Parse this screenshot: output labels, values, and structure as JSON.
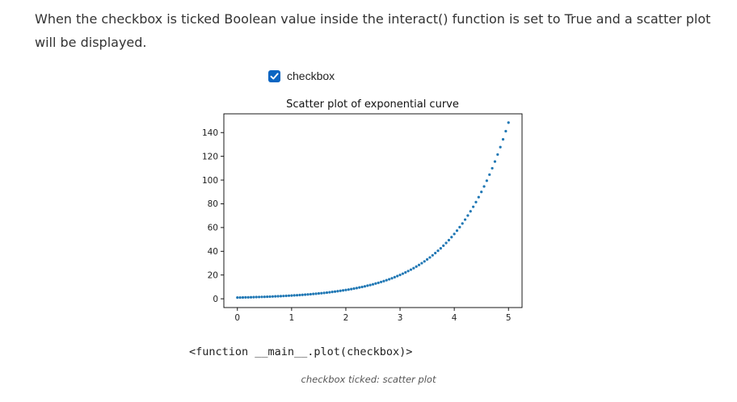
{
  "intro_text": "When the checkbox is ticked Boolean value inside the interact() function is set to True and a scatter plot will be displayed.",
  "checkbox": {
    "label": "checkbox",
    "checked": true,
    "color": "#0a65c2"
  },
  "output_text": "<function __main__.plot(checkbox)>",
  "caption": "checkbox ticked: scatter plot",
  "chart_data": {
    "type": "scatter",
    "title": "Scatter plot of exponential curve",
    "xlabel": "",
    "ylabel": "",
    "xlim": [
      -0.25,
      5.25
    ],
    "ylim": [
      -7.4,
      155.8
    ],
    "x_ticks": [
      0,
      1,
      2,
      3,
      4,
      5
    ],
    "y_ticks": [
      0,
      20,
      40,
      60,
      80,
      100,
      120,
      140
    ],
    "point_color": "#1f77b4",
    "series": [
      {
        "x": [
          0,
          0.05,
          0.1,
          0.15,
          0.2,
          0.25,
          0.3,
          0.35,
          0.4,
          0.45,
          0.5,
          0.55,
          0.6,
          0.65,
          0.7,
          0.75,
          0.8,
          0.85,
          0.9,
          0.95,
          1,
          1.05,
          1.1,
          1.15,
          1.2,
          1.25,
          1.3,
          1.35,
          1.4,
          1.45,
          1.5,
          1.55,
          1.6,
          1.65,
          1.7,
          1.75,
          1.8,
          1.85,
          1.9,
          1.95,
          2,
          2.05,
          2.1,
          2.15,
          2.2,
          2.25,
          2.3,
          2.35,
          2.4,
          2.45,
          2.5,
          2.55,
          2.6,
          2.65,
          2.7,
          2.75,
          2.8,
          2.85,
          2.9,
          2.95,
          3,
          3.05,
          3.1,
          3.15,
          3.2,
          3.25,
          3.3,
          3.35,
          3.4,
          3.45,
          3.5,
          3.55,
          3.6,
          3.65,
          3.7,
          3.75,
          3.8,
          3.85,
          3.9,
          3.95,
          4,
          4.05,
          4.1,
          4.15,
          4.2,
          4.25,
          4.3,
          4.35,
          4.4,
          4.45,
          4.5,
          4.55,
          4.6,
          4.65,
          4.7,
          4.75,
          4.8,
          4.85,
          4.9,
          4.95,
          5
        ],
        "y": [
          1,
          1.05,
          1.11,
          1.16,
          1.22,
          1.28,
          1.35,
          1.42,
          1.49,
          1.57,
          1.65,
          1.73,
          1.82,
          1.92,
          2.01,
          2.12,
          2.23,
          2.34,
          2.46,
          2.59,
          2.72,
          2.86,
          3,
          3.16,
          3.32,
          3.49,
          3.67,
          3.86,
          4.06,
          4.26,
          4.48,
          4.71,
          4.95,
          5.21,
          5.47,
          5.75,
          6.05,
          6.36,
          6.69,
          7.03,
          7.39,
          7.77,
          8.17,
          8.58,
          9.03,
          9.49,
          9.97,
          10.49,
          11.02,
          11.59,
          12.18,
          12.81,
          13.46,
          14.15,
          14.88,
          15.64,
          16.44,
          17.29,
          18.17,
          19.11,
          20.09,
          21.12,
          22.2,
          23.34,
          24.53,
          25.79,
          27.11,
          28.5,
          29.96,
          31.5,
          33.12,
          34.81,
          36.6,
          38.48,
          40.45,
          42.52,
          44.7,
          46.99,
          49.4,
          51.94,
          54.6,
          57.4,
          60.34,
          63.43,
          66.69,
          70.11,
          73.7,
          77.48,
          81.45,
          85.63,
          90.02,
          94.63,
          99.48,
          104.58,
          109.95,
          115.58,
          121.51,
          127.74,
          134.29,
          141.17,
          148.41
        ]
      }
    ]
  }
}
